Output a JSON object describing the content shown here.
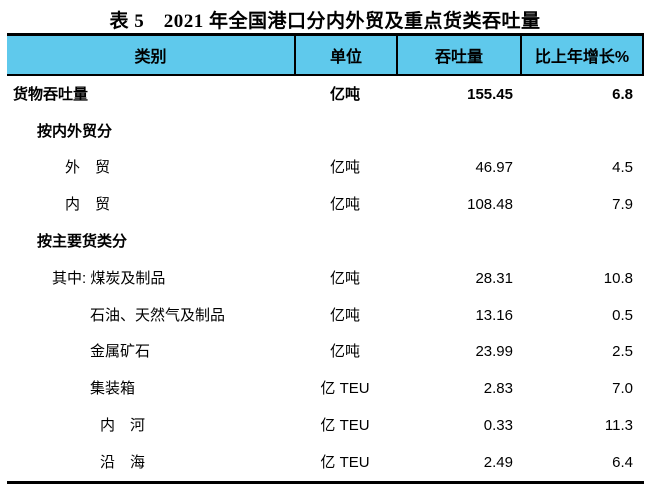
{
  "title": "表 5　2021 年全国港口分内外贸及重点货类吞吐量",
  "colors": {
    "header_bg": "#5FC9EC",
    "border": "#000000",
    "text": "#000000",
    "page_bg": "#FFFFFF"
  },
  "table": {
    "columns": {
      "category": "类别",
      "unit": "单位",
      "throughput": "吞吐量",
      "growth": "比上年增长%"
    },
    "rows": [
      {
        "label": "货物吞吐量",
        "unit": "亿吨",
        "value": "155.45",
        "growth": "6.8"
      },
      {
        "label": "按内外贸分",
        "unit": "",
        "value": "",
        "growth": ""
      },
      {
        "label": "外　贸",
        "unit": "亿吨",
        "value": "46.97",
        "growth": "4.5"
      },
      {
        "label": "内　贸",
        "unit": "亿吨",
        "value": "108.48",
        "growth": "7.9"
      },
      {
        "label": "按主要货类分",
        "unit": "",
        "value": "",
        "growth": ""
      },
      {
        "label": "其中: 煤炭及制品",
        "unit": "亿吨",
        "value": "28.31",
        "growth": "10.8"
      },
      {
        "label": "石油、天然气及制品",
        "unit": "亿吨",
        "value": "13.16",
        "growth": "0.5"
      },
      {
        "label": "金属矿石",
        "unit": "亿吨",
        "value": "23.99",
        "growth": "2.5"
      },
      {
        "label": "集装箱",
        "unit": "亿 TEU",
        "value": "2.83",
        "growth": "7.0"
      },
      {
        "label": "内　河",
        "unit": "亿 TEU",
        "value": "0.33",
        "growth": "11.3"
      },
      {
        "label": "沿　海",
        "unit": "亿 TEU",
        "value": "2.49",
        "growth": "6.4"
      }
    ]
  }
}
